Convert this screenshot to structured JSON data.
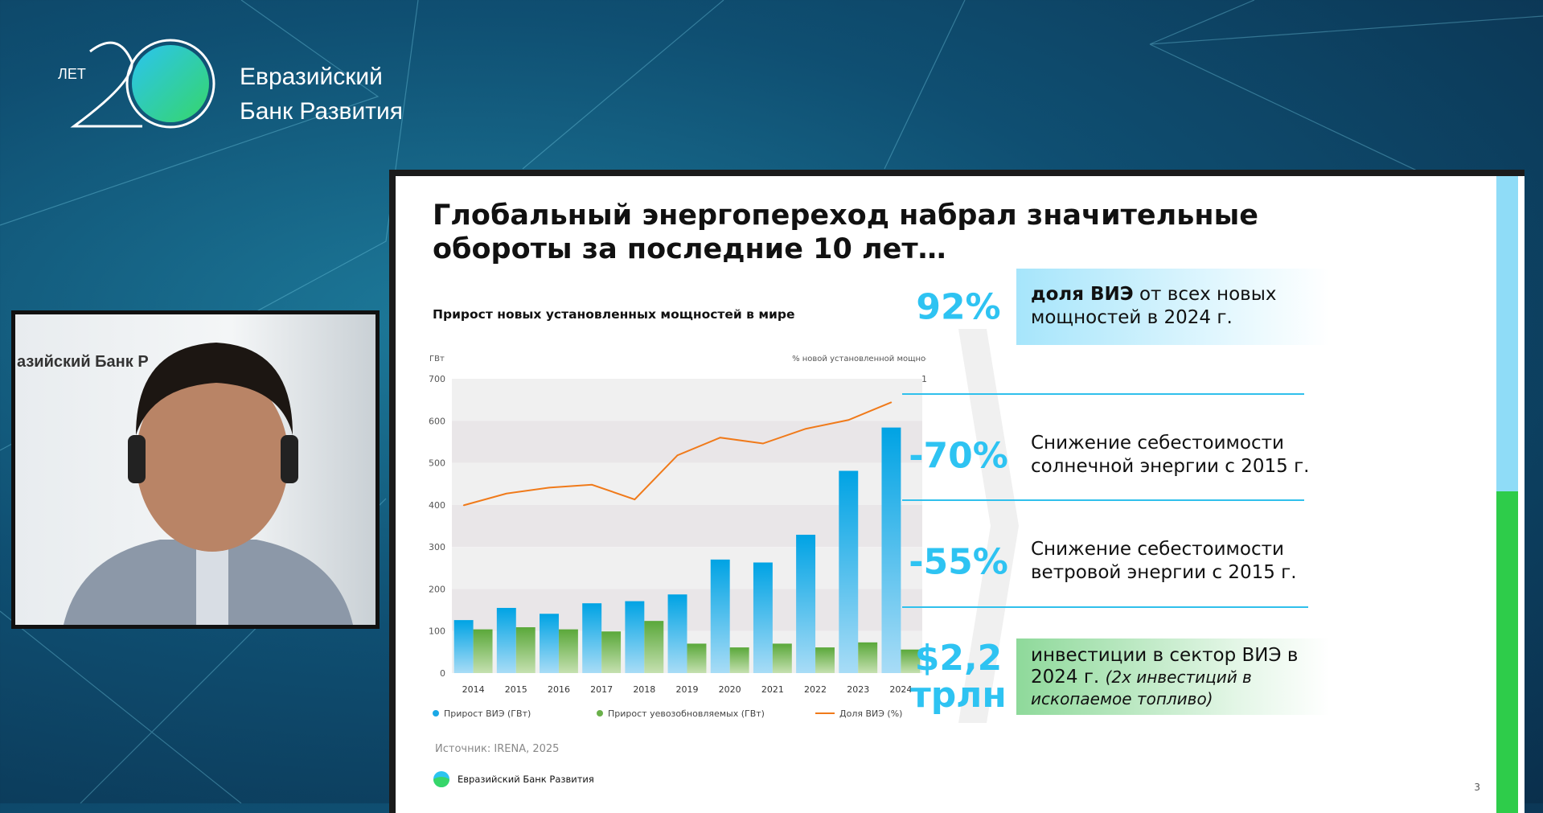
{
  "header": {
    "logo_text": "ЛЕТ 20",
    "brand_line1": "Евразийский",
    "brand_line2": "Банк Развития"
  },
  "video": {
    "background_text": "азийский Банк Р"
  },
  "slide": {
    "title_line1": "Глобальный энергопереход набрал значительные",
    "title_line2": "обороты за последние 10 лет…",
    "source": "Источник: IRENA, 2025",
    "footer_brand": "Евразийский Банк Развития",
    "page_number": "3",
    "stats": [
      {
        "value": "92%",
        "text_bold": "доля ВИЭ",
        "text": " от всех новых мощностей в 2024 г."
      },
      {
        "value": "-70%",
        "text": "Снижение себестоимости солнечной энергии с 2015 г."
      },
      {
        "value": "-55%",
        "text": "Снижение себестоимости ветровой энергии с 2015 г."
      },
      {
        "value_line1": "$2,2",
        "value_line2": "трлн",
        "text": "инвестиции в сектор ВИЭ в 2024 г. ",
        "text_italic": "(2х инвестиций в ископаемое топливо)"
      }
    ]
  },
  "chart_data": {
    "type": "bar",
    "title": "Прирост новых установленных мощностей в мире",
    "ylabel": "ГВт",
    "y2label": "% новой установленной мощности",
    "categories": [
      "2014",
      "2015",
      "2016",
      "2017",
      "2018",
      "2019",
      "2020",
      "2021",
      "2022",
      "2023",
      "2024"
    ],
    "ylim": [
      0,
      700
    ],
    "yticks": [
      "0",
      "100",
      "200",
      "300",
      "400",
      "500",
      "600",
      "700"
    ],
    "y2lim": [
      0,
      100
    ],
    "y2ticks": [
      "0",
      "10",
      "20",
      "30",
      "40",
      "50",
      "60",
      "70",
      "80",
      "90",
      "100"
    ],
    "series": [
      {
        "name": "Прирост ВИЭ (ГВт)",
        "type": "bar",
        "color": "#00a3e4",
        "values": [
          126,
          155,
          141,
          166,
          171,
          187,
          270,
          263,
          329,
          481,
          584
        ]
      },
      {
        "name": "Прирост уевозобновляемых (ГВт)",
        "type": "bar",
        "color": "#5aa83a",
        "values": [
          104,
          109,
          104,
          99,
          124,
          70,
          61,
          70,
          61,
          73,
          56
        ]
      },
      {
        "name": "Доля ВИЭ (%)",
        "type": "line",
        "axis": "right",
        "color": "#f07a1a",
        "values": [
          57,
          61,
          63,
          64,
          59,
          74,
          80,
          78,
          83,
          86,
          92
        ]
      }
    ],
    "legend": "bottom"
  }
}
